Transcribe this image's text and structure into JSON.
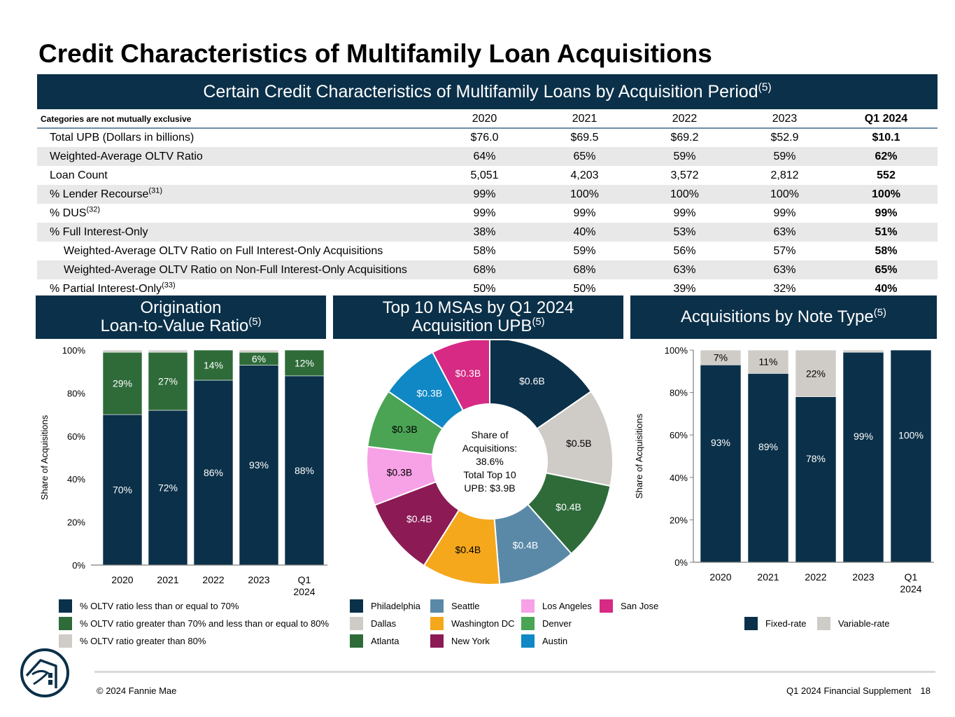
{
  "page": {
    "title": "Credit Characteristics of Multifamily Loan Acquisitions",
    "footer_left": "© 2024 Fannie Mae",
    "footer_right": "Q1 2024 Financial Supplement",
    "page_number": "18"
  },
  "table": {
    "banner": "Certain Credit Characteristics of Multifamily Loans by Acquisition Period",
    "banner_sup": "(5)",
    "category_note": "Categories are not mutually exclusive",
    "columns": [
      "2020",
      "2021",
      "2022",
      "2023",
      "Q1 2024"
    ],
    "rows": [
      {
        "label": "Total UPB (Dollars in billions)",
        "sup": "",
        "indent": false,
        "shade": false,
        "values": [
          "$76.0",
          "$69.5",
          "$69.2",
          "$52.9",
          "$10.1"
        ]
      },
      {
        "label": "Weighted-Average OLTV Ratio",
        "sup": "",
        "indent": false,
        "shade": true,
        "values": [
          "64%",
          "65%",
          "59%",
          "59%",
          "62%"
        ]
      },
      {
        "label": "Loan Count",
        "sup": "",
        "indent": false,
        "shade": false,
        "values": [
          "5,051",
          "4,203",
          "3,572",
          "2,812",
          "552"
        ]
      },
      {
        "label": "% Lender Recourse",
        "sup": "(31)",
        "indent": false,
        "shade": true,
        "values": [
          "99%",
          "100%",
          "100%",
          "100%",
          "100%"
        ]
      },
      {
        "label": "% DUS",
        "sup": "(32)",
        "indent": false,
        "shade": false,
        "values": [
          "99%",
          "99%",
          "99%",
          "99%",
          "99%"
        ]
      },
      {
        "label": "% Full Interest-Only",
        "sup": "",
        "indent": false,
        "shade": true,
        "values": [
          "38%",
          "40%",
          "53%",
          "63%",
          "51%"
        ]
      },
      {
        "label": "Weighted-Average OLTV Ratio on Full Interest-Only Acquisitions",
        "sup": "",
        "indent": true,
        "shade": false,
        "values": [
          "58%",
          "59%",
          "56%",
          "57%",
          "58%"
        ]
      },
      {
        "label": "Weighted-Average OLTV Ratio on Non-Full Interest-Only Acquisitions",
        "sup": "",
        "indent": true,
        "shade": true,
        "values": [
          "68%",
          "68%",
          "63%",
          "63%",
          "65%"
        ]
      },
      {
        "label": "% Partial Interest-Only",
        "sup": "(33)",
        "indent": false,
        "shade": false,
        "values": [
          "50%",
          "50%",
          "39%",
          "32%",
          "40%"
        ]
      }
    ]
  },
  "panels": {
    "oltv": {
      "line1": "Origination",
      "line2": "Loan-to-Value Ratio",
      "sup": "(5)"
    },
    "msa": {
      "line1": "Top 10 MSAs by Q1 2024",
      "line2": "Acquisition UPB",
      "sup": "(5)"
    },
    "note": {
      "line1": "Acquisitions by Note Type",
      "sup": "(5)"
    }
  },
  "chart_data": [
    {
      "type": "bar",
      "stacked": true,
      "categories": [
        "2020",
        "2021",
        "2022",
        "2023",
        "Q1 2024"
      ],
      "ylabel": "Share of Acquisitions",
      "ylim": [
        0,
        100
      ],
      "yticks": [
        "0%",
        "20%",
        "40%",
        "60%",
        "80%",
        "100%"
      ],
      "series": [
        {
          "name": "% OLTV ratio less than or equal to 70%",
          "color": "#0b3049",
          "values": [
            70,
            72,
            86,
            93,
            88
          ],
          "labels": [
            "70%",
            "72%",
            "86%",
            "93%",
            "88%"
          ]
        },
        {
          "name": "% OLTV ratio greater than 70% and less than or equal to 80%",
          "color": "#2e6b39",
          "values": [
            29,
            27,
            14,
            6,
            12
          ],
          "labels": [
            "29%",
            "27%",
            "14%",
            "6%",
            "12%"
          ]
        },
        {
          "name": "% OLTV ratio greater than 80%",
          "color": "#cfccc7",
          "values": [
            1,
            1,
            0,
            1,
            0
          ],
          "labels": [
            "",
            "",
            "",
            "",
            ""
          ]
        }
      ]
    },
    {
      "type": "pie",
      "donut": true,
      "center_text": [
        "Share of",
        "Acquisitions:",
        "38.6%",
        "Total Top 10",
        "UPB: $3.9B"
      ],
      "slices": [
        {
          "name": "Philadelphia",
          "value": 0.6,
          "label": "$0.6B",
          "color": "#0b3049"
        },
        {
          "name": "Dallas",
          "value": 0.5,
          "label": "$0.5B",
          "color": "#cfccc7"
        },
        {
          "name": "Atlanta",
          "value": 0.4,
          "label": "$0.4B",
          "color": "#2e6b39"
        },
        {
          "name": "Seattle",
          "value": 0.4,
          "label": "$0.4B",
          "color": "#5a89a8"
        },
        {
          "name": "Washington DC",
          "value": 0.4,
          "label": "$0.4B",
          "color": "#f5a81c"
        },
        {
          "name": "New York",
          "value": 0.4,
          "label": "$0.4B",
          "color": "#8b1a55"
        },
        {
          "name": "Los Angeles",
          "value": 0.3,
          "label": "$0.3B",
          "color": "#f7a1e6"
        },
        {
          "name": "Denver",
          "value": 0.3,
          "label": "$0.3B",
          "color": "#4aa454"
        },
        {
          "name": "Austin",
          "value": 0.3,
          "label": "$0.3B",
          "color": "#0f88c5"
        },
        {
          "name": "San Jose",
          "value": 0.3,
          "label": "$0.3B",
          "color": "#d62a85"
        }
      ]
    },
    {
      "type": "bar",
      "stacked": true,
      "categories": [
        "2020",
        "2021",
        "2022",
        "2023",
        "Q1 2024"
      ],
      "ylabel": "Share of Acquisitions",
      "ylim": [
        0,
        100
      ],
      "yticks": [
        "0%",
        "20%",
        "40%",
        "60%",
        "80%",
        "100%"
      ],
      "series": [
        {
          "name": "Fixed-rate",
          "color": "#0b3049",
          "values": [
            93,
            89,
            78,
            99,
            100
          ],
          "labels": [
            "93%",
            "89%",
            "78%",
            "99%",
            "100%"
          ]
        },
        {
          "name": "Variable-rate",
          "color": "#cfccc7",
          "values": [
            7,
            11,
            22,
            1,
            0
          ],
          "labels": [
            "7%",
            "11%",
            "22%",
            "",
            ""
          ]
        }
      ]
    }
  ]
}
